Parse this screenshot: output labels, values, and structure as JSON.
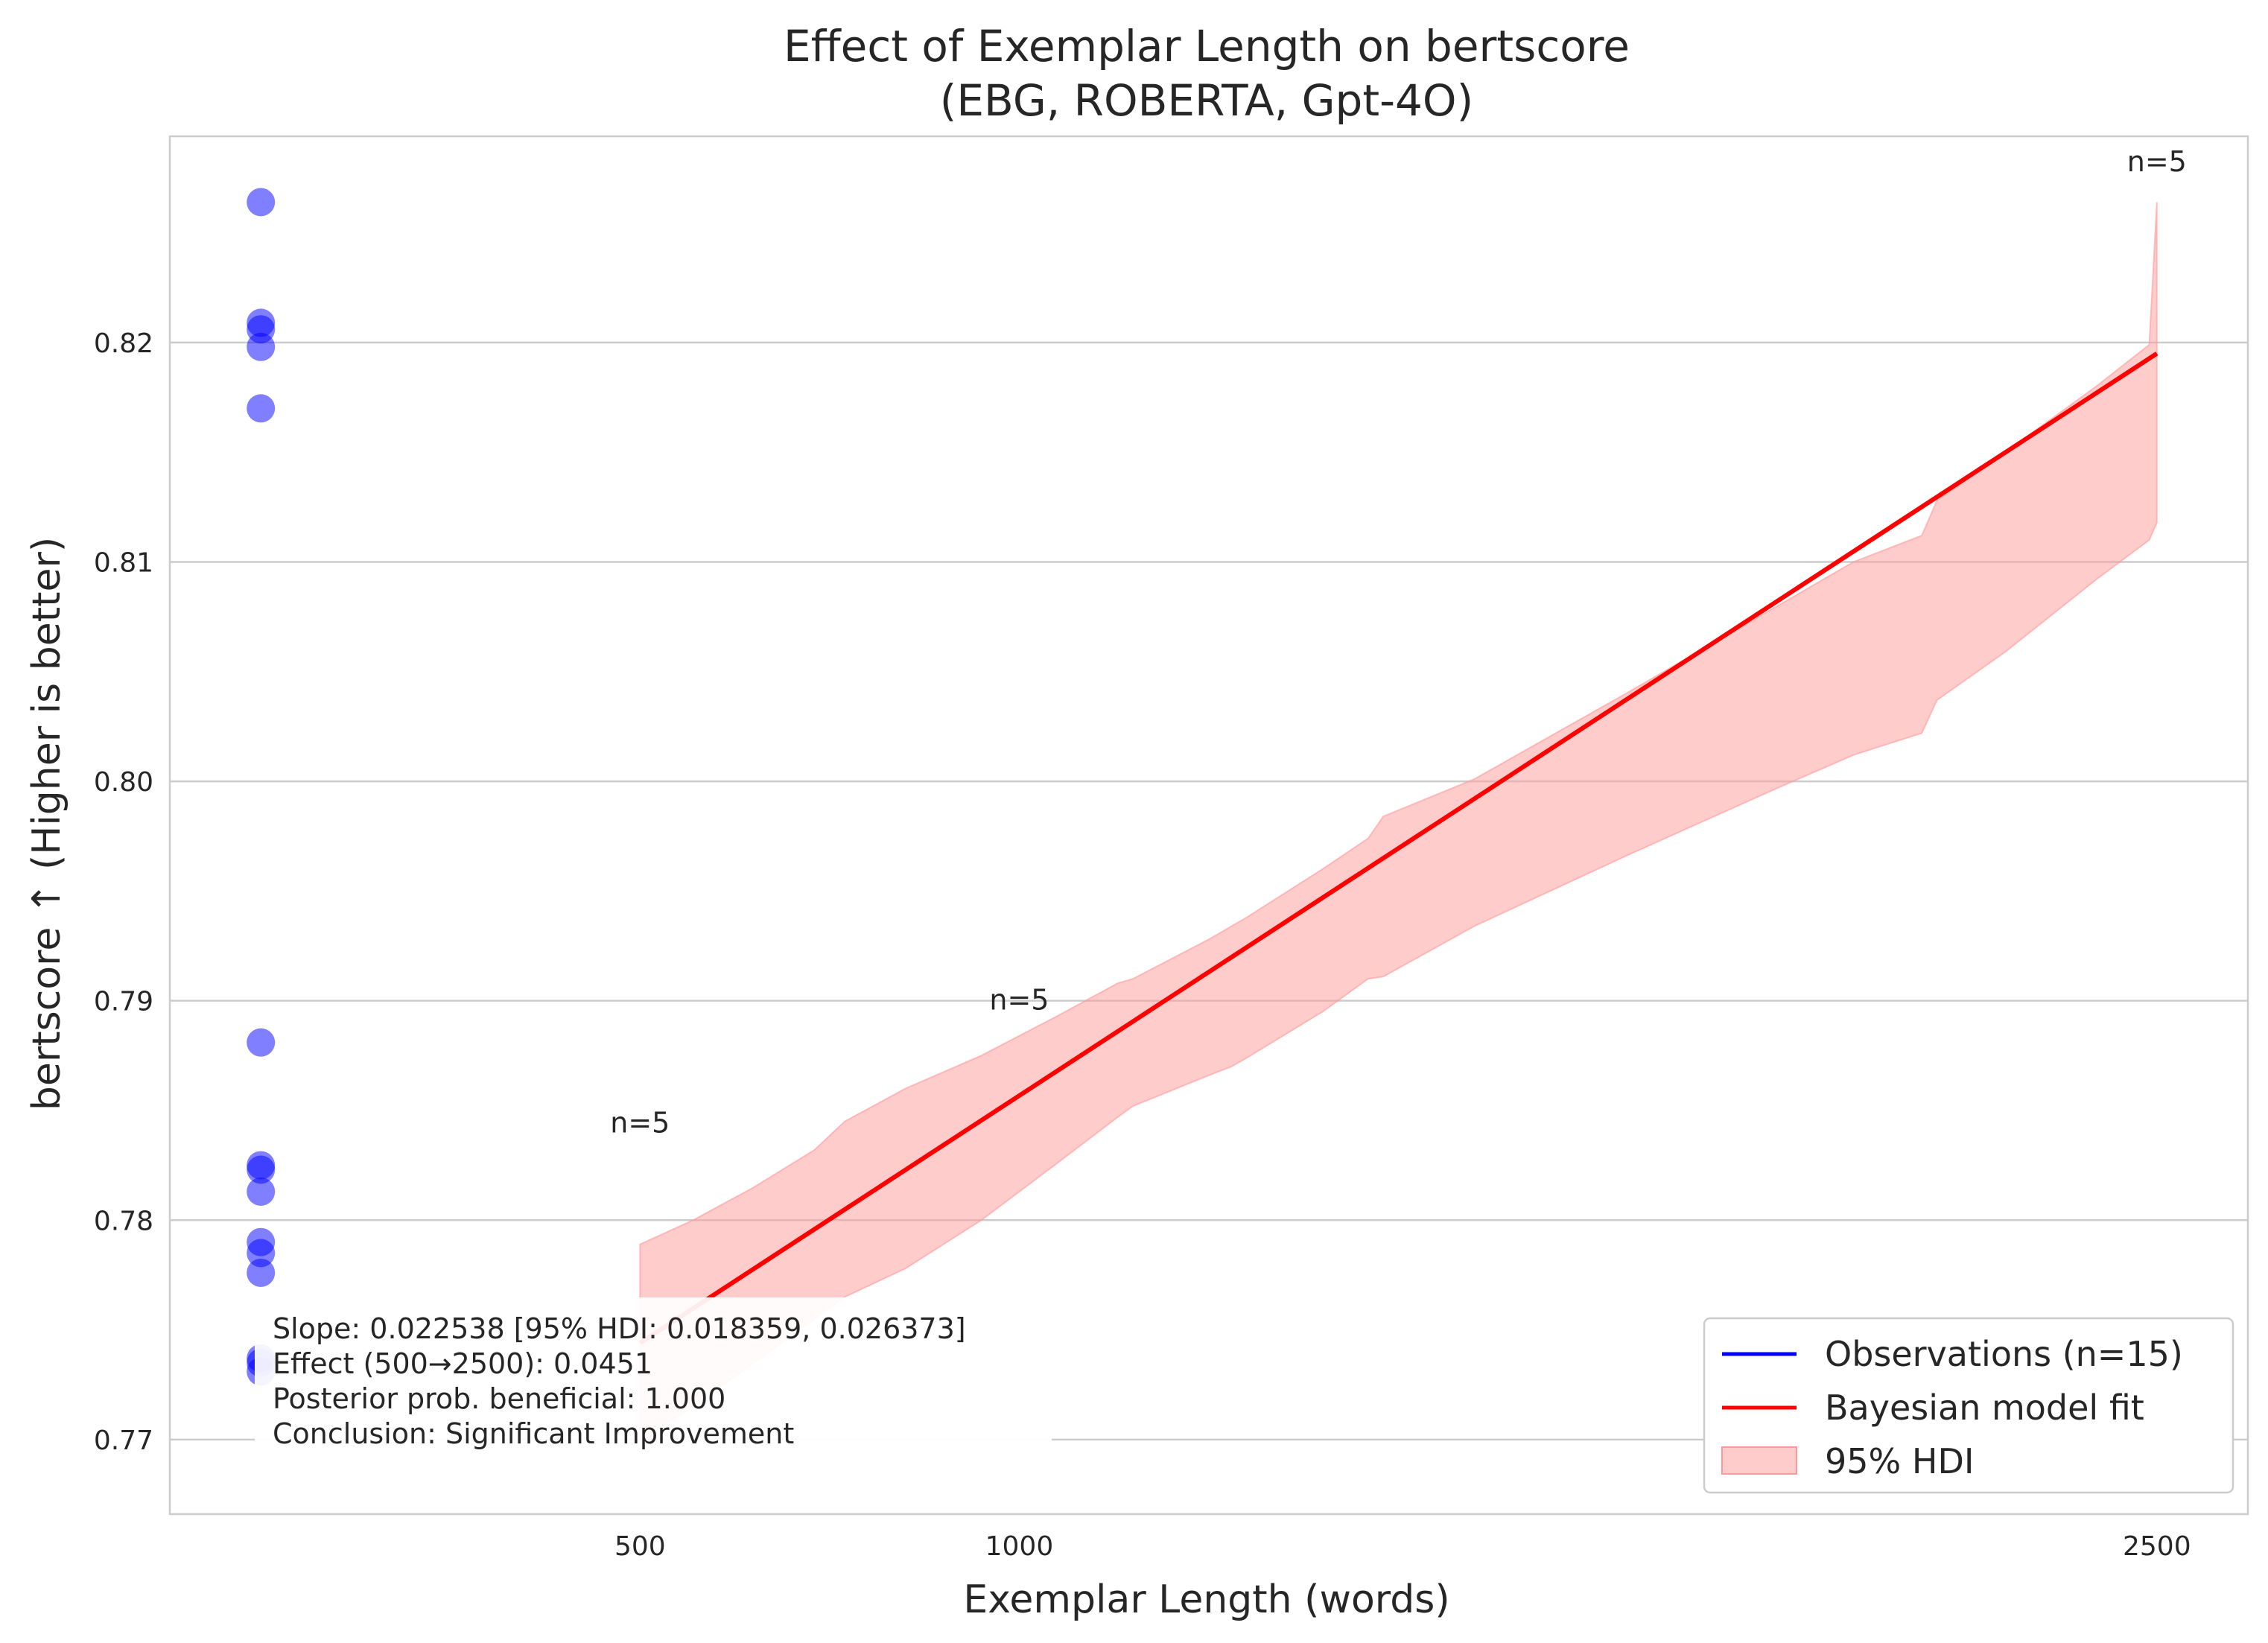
{
  "chart_data": {
    "type": "scatter",
    "title": "Effect of Exemplar Length on bertscore",
    "subtitle": "(EBG, ROBERTA, Gpt-4O)",
    "xlabel": "Exemplar Length (words)",
    "ylabel": "bertscore ↑ (Higher is better)",
    "xlim": [
      -120,
      2620
    ],
    "ylim": [
      0.7666,
      0.8294
    ],
    "x_ticks": [
      500,
      1000,
      2500
    ],
    "x_tick_labels": [
      "500",
      "1000",
      "2500"
    ],
    "y_ticks": [
      0.77,
      0.78,
      0.79,
      0.8,
      0.81,
      0.82
    ],
    "y_tick_labels": [
      "0.77",
      "0.78",
      "0.79",
      "0.80",
      "0.81",
      "0.82"
    ],
    "grid": "horizontal",
    "observations": {
      "name": "Observations (n=15)",
      "color": "#0000ff",
      "x": [
        0,
        0,
        0,
        0,
        0,
        0,
        0,
        0,
        0,
        0,
        0,
        0,
        0,
        0,
        0
      ],
      "y": [
        0.8264,
        0.8209,
        0.8206,
        0.8198,
        0.817,
        0.7881,
        0.7825,
        0.7823,
        0.7813,
        0.779,
        0.7785,
        0.7776,
        0.7737,
        0.7735,
        0.7731
      ]
    },
    "model_fit": {
      "name": "Bayesian model fit",
      "color": "#ff0000",
      "x": [
        500,
        2500
      ],
      "y": [
        0.7744,
        0.8195
      ]
    },
    "hdi": {
      "name": "95% HDI",
      "color": "#ff9999",
      "x": [
        500,
        570,
        650,
        730,
        770,
        850,
        950,
        1050,
        1130,
        1150,
        1250,
        1280,
        1300,
        1400,
        1460,
        1480,
        1600,
        1800,
        2000,
        2100,
        2190,
        2210,
        2300,
        2420,
        2490,
        2500
      ],
      "lower": [
        0.77,
        0.7715,
        0.7735,
        0.7755,
        0.7765,
        0.7778,
        0.78,
        0.7826,
        0.7847,
        0.7852,
        0.7866,
        0.787,
        0.7874,
        0.7895,
        0.791,
        0.7911,
        0.7934,
        0.7966,
        0.7997,
        0.8012,
        0.8022,
        0.8037,
        0.8059,
        0.8092,
        0.811,
        0.8118
      ],
      "upper": [
        0.7789,
        0.78,
        0.7815,
        0.7832,
        0.7845,
        0.786,
        0.7875,
        0.7893,
        0.7908,
        0.791,
        0.7928,
        0.7934,
        0.7938,
        0.796,
        0.7974,
        0.7984,
        0.8001,
        0.804,
        0.808,
        0.81,
        0.8112,
        0.8128,
        0.815,
        0.818,
        0.8199,
        0.8264
      ]
    },
    "annotations": [
      {
        "text": "n=5",
        "x": 0,
        "y": 0.784
      },
      {
        "text": "n=5",
        "x": 1000,
        "y": 0.7896
      },
      {
        "text": "n=5",
        "x": 2500,
        "y": 0.8278
      }
    ],
    "stats_box": [
      "Slope: 0.022538 [95% HDI: 0.018359, 0.026373]",
      "Effect (500→2500): 0.0451",
      "Posterior prob. beneficial: 1.000",
      "Conclusion: Significant Improvement"
    ],
    "legend": {
      "position": "lower-right",
      "entries": [
        "Observations (n=15)",
        "Bayesian model fit",
        "95% HDI"
      ]
    }
  }
}
